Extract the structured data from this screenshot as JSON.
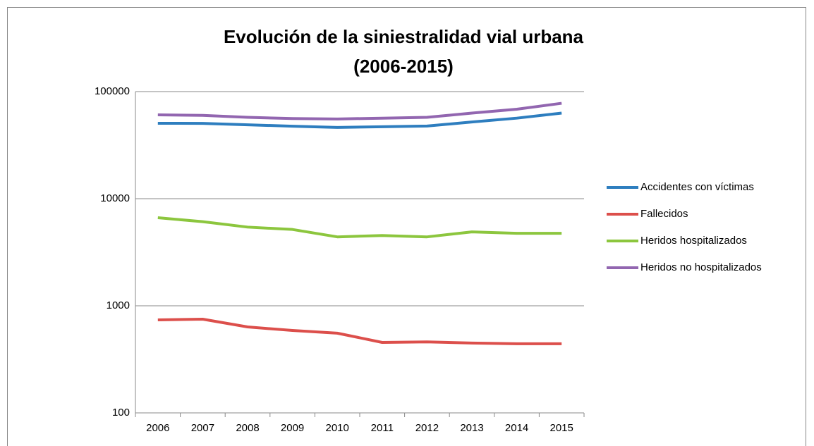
{
  "chart_data": {
    "type": "line",
    "title": [
      "Evolución de la siniestralidad vial urbana",
      "(2006-2015)"
    ],
    "categories": [
      "2006",
      "2007",
      "2008",
      "2009",
      "2010",
      "2011",
      "2012",
      "2013",
      "2014",
      "2015"
    ],
    "series": [
      {
        "name": "Accidentes con víctimas",
        "color": "#2e7ebf",
        "values": [
          50600,
          50500,
          49000,
          47500,
          46300,
          47000,
          47700,
          52000,
          56500,
          63000
        ]
      },
      {
        "name": "Fallecidos",
        "color": "#dc4f4b",
        "values": [
          738,
          750,
          635,
          588,
          555,
          455,
          460,
          449,
          442,
          442
        ]
      },
      {
        "name": "Heridos hospitalizados",
        "color": "#8cc63e",
        "values": [
          6640,
          6100,
          5430,
          5160,
          4400,
          4530,
          4400,
          4900,
          4750,
          4750
        ]
      },
      {
        "name": "Heridos no hospitalizados",
        "color": "#9266b0",
        "values": [
          60700,
          60000,
          57500,
          56000,
          55500,
          56500,
          57500,
          63000,
          68500,
          77800
        ]
      }
    ],
    "ylim": [
      100,
      100000
    ],
    "yticks": [
      100,
      1000,
      10000,
      100000
    ],
    "log_y": true,
    "grid": true,
    "legend": "right"
  }
}
